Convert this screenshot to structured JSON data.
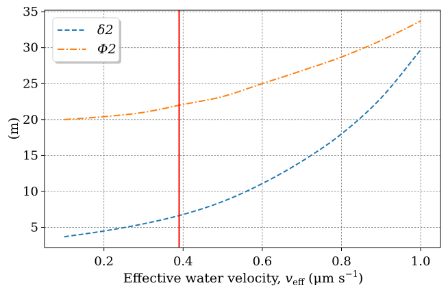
{
  "chart_data": {
    "type": "line",
    "title": "",
    "xlabel": "Effective water velocity, v_eff (μm s⁻¹)",
    "ylabel": "(m)",
    "xlim": [
      0.05,
      1.05
    ],
    "ylim": [
      2.2,
      35.2
    ],
    "xticks": [
      0.2,
      0.4,
      0.6,
      0.8,
      1.0
    ],
    "xtick_labels": [
      "0.2",
      "0.4",
      "0.6",
      "0.8",
      "1.0"
    ],
    "yticks": [
      5,
      10,
      15,
      20,
      25,
      30,
      35
    ],
    "ytick_labels": [
      "5",
      "10",
      "15",
      "20",
      "25",
      "30",
      "35"
    ],
    "grid": true,
    "legend_position": "top-left",
    "series": [
      {
        "name": "δ2",
        "color": "#1f77b4",
        "style": "dashed",
        "x": [
          0.1,
          0.2,
          0.3,
          0.4,
          0.5,
          0.6,
          0.7,
          0.8,
          0.9,
          1.0
        ],
        "y": [
          3.7,
          4.5,
          5.5,
          6.8,
          8.6,
          11.1,
          14.2,
          18.0,
          23.0,
          29.7
        ]
      },
      {
        "name": "Φ2",
        "color": "#ff7f0e",
        "style": "dashdot",
        "x": [
          0.1,
          0.2,
          0.3,
          0.4,
          0.5,
          0.6,
          0.7,
          0.8,
          0.9,
          1.0
        ],
        "y": [
          20.0,
          20.4,
          21.0,
          22.1,
          23.2,
          25.0,
          26.8,
          28.7,
          31.0,
          33.7
        ]
      }
    ],
    "annotations": [
      {
        "type": "vline",
        "x": 0.39,
        "color": "#ff0000"
      }
    ]
  }
}
